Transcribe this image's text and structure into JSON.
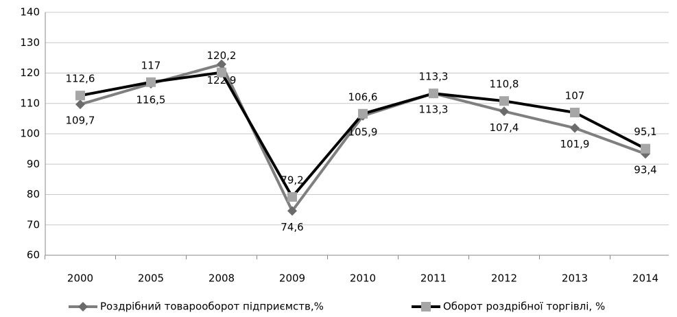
{
  "chart_data": {
    "type": "line",
    "categories": [
      "2000",
      "2005",
      "2008",
      "2009",
      "2010",
      "2011",
      "2012",
      "2013",
      "2014"
    ],
    "series": [
      {
        "name": "Роздрібний товарооборот підприємств,%",
        "color": "#7f7f7f",
        "marker": "diamond",
        "marker_color": "#6b6b6b",
        "values": [
          109.7,
          116.5,
          122.9,
          74.6,
          105.9,
          113.3,
          107.4,
          101.9,
          93.4
        ],
        "value_labels": [
          "109,7",
          "116,5",
          "122,9",
          "74,6",
          "105,9",
          "113,3",
          "107,4",
          "101,9",
          "93,4"
        ]
      },
      {
        "name": "Оборот роздрібної торгівлі, %",
        "color": "#000000",
        "marker": "square",
        "marker_color": "#a6a6a6",
        "values": [
          112.6,
          117,
          120.2,
          79.2,
          106.6,
          113.3,
          110.8,
          107,
          95.1
        ],
        "value_labels": [
          "112,6",
          "117",
          "120,2",
          "79,2",
          "106,6",
          "113,3",
          "110,8",
          "107",
          "95,1"
        ]
      }
    ],
    "ylim": [
      60,
      140
    ],
    "yticks": [
      60,
      70,
      80,
      90,
      100,
      110,
      120,
      130,
      140
    ],
    "grid": true,
    "legend": "bottom"
  }
}
